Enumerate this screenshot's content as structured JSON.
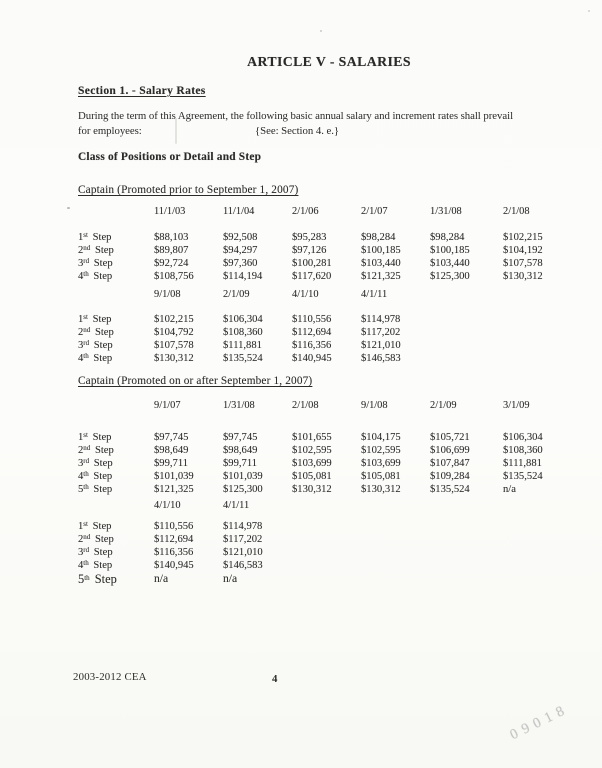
{
  "page": {
    "title": "ARTICLE V - SALARIES",
    "section_heading": "Section 1. - Salary Rates",
    "intro": {
      "line1": "During the term of this Agreement, the following basic annual salary and increment rates shall prevail",
      "line2_label": "for employees:",
      "line2_ref": "{See: Section 4. e.}"
    },
    "class_heading": "Class of Positions or Detail and Step"
  },
  "tables": [
    {
      "heading": "Captain (Promoted prior to September 1, 2007)",
      "columns": [
        "11/1/03",
        "11/1/04",
        "2/1/06",
        "2/1/07",
        "1/31/08",
        "2/1/08"
      ],
      "rows": [
        {
          "ordinal": "1",
          "suffix": "st",
          "unit": "Step",
          "values": [
            "$88,103",
            "$92,508",
            "$95,283",
            "$98,284",
            "$98,284",
            "$102,215"
          ]
        },
        {
          "ordinal": "2",
          "suffix": "nd",
          "unit": "Step",
          "values": [
            "$89,807",
            "$94,297",
            "$97,126",
            "$100,185",
            "$100,185",
            "$104,192"
          ]
        },
        {
          "ordinal": "3",
          "suffix": "rd",
          "unit": "Step",
          "values": [
            "$92,724",
            "$97,360",
            "$100,281",
            "$103,440",
            "$103,440",
            "$107,578"
          ]
        },
        {
          "ordinal": "4",
          "suffix": "th",
          "unit": "Step",
          "values": [
            "$108,756",
            "$114,194",
            "$117,620",
            "$121,325",
            "$125,300",
            "$130,312"
          ]
        }
      ]
    },
    {
      "heading": null,
      "columns": [
        "9/1/08",
        "2/1/09",
        "4/1/10",
        "4/1/11"
      ],
      "rows": [
        {
          "ordinal": "1",
          "suffix": "st",
          "unit": "Step",
          "values": [
            "$102,215",
            "$106,304",
            "$110,556",
            "$114,978"
          ]
        },
        {
          "ordinal": "2",
          "suffix": "nd",
          "unit": "Step",
          "values": [
            "$104,792",
            "$108,360",
            "$112,694",
            "$117,202"
          ]
        },
        {
          "ordinal": "3",
          "suffix": "rd",
          "unit": "Step",
          "values": [
            "$107,578",
            "$111,881",
            "$116,356",
            "$121,010"
          ]
        },
        {
          "ordinal": "4",
          "suffix": "th",
          "unit": "Step",
          "values": [
            "$130,312",
            "$135,524",
            "$140,945",
            "$146,583"
          ]
        }
      ]
    },
    {
      "heading": "Captain (Promoted on or after September 1, 2007)",
      "columns": [
        "9/1/07",
        "1/31/08",
        "2/1/08",
        "9/1/08",
        "2/1/09",
        "3/1/09"
      ],
      "rows": [
        {
          "ordinal": "1",
          "suffix": "st",
          "unit": "Step",
          "values": [
            "$97,745",
            "$97,745",
            "$101,655",
            "$104,175",
            "$105,721",
            "$106,304"
          ]
        },
        {
          "ordinal": "2",
          "suffix": "nd",
          "unit": "Step",
          "values": [
            "$98,649",
            "$98,649",
            "$102,595",
            "$102,595",
            "$106,699",
            "$108,360"
          ]
        },
        {
          "ordinal": "3",
          "suffix": "rd",
          "unit": "Step",
          "values": [
            "$99,711",
            "$99,711",
            "$103,699",
            "$103,699",
            "$107,847",
            "$111,881"
          ]
        },
        {
          "ordinal": "4",
          "suffix": "th",
          "unit": "Step",
          "values": [
            "$101,039",
            "$101,039",
            "$105,081",
            "$105,081",
            "$109,284",
            "$135,524"
          ]
        },
        {
          "ordinal": "5",
          "suffix": "th",
          "unit": "Step",
          "values": [
            "$121,325",
            "$125,300",
            "$130,312",
            "$130,312",
            "$135,524",
            "n/a"
          ]
        }
      ]
    },
    {
      "heading": null,
      "columns": [
        "4/1/10",
        "4/1/11"
      ],
      "rows": [
        {
          "ordinal": "1",
          "suffix": "st",
          "unit": "Step",
          "values": [
            "$110,556",
            "$114,978"
          ]
        },
        {
          "ordinal": "2",
          "suffix": "nd",
          "unit": "Step",
          "values": [
            "$112,694",
            "$117,202"
          ]
        },
        {
          "ordinal": "3",
          "suffix": "rd",
          "unit": "Step",
          "values": [
            "$116,356",
            "$121,010"
          ]
        },
        {
          "ordinal": "4",
          "suffix": "th",
          "unit": "Step",
          "values": [
            "$140,945",
            "$146,583"
          ]
        },
        {
          "ordinal": "5",
          "suffix": "th",
          "unit": "Step",
          "values": [
            "n/a",
            "n/a"
          ]
        }
      ]
    }
  ],
  "footer": {
    "agreement": "2003-2012 CEA",
    "page_number": "4"
  },
  "stamp": "09018",
  "colors": {
    "text": "#2a2a28",
    "paper": "#fbfbf9",
    "stamp": "#b9b9b9"
  }
}
